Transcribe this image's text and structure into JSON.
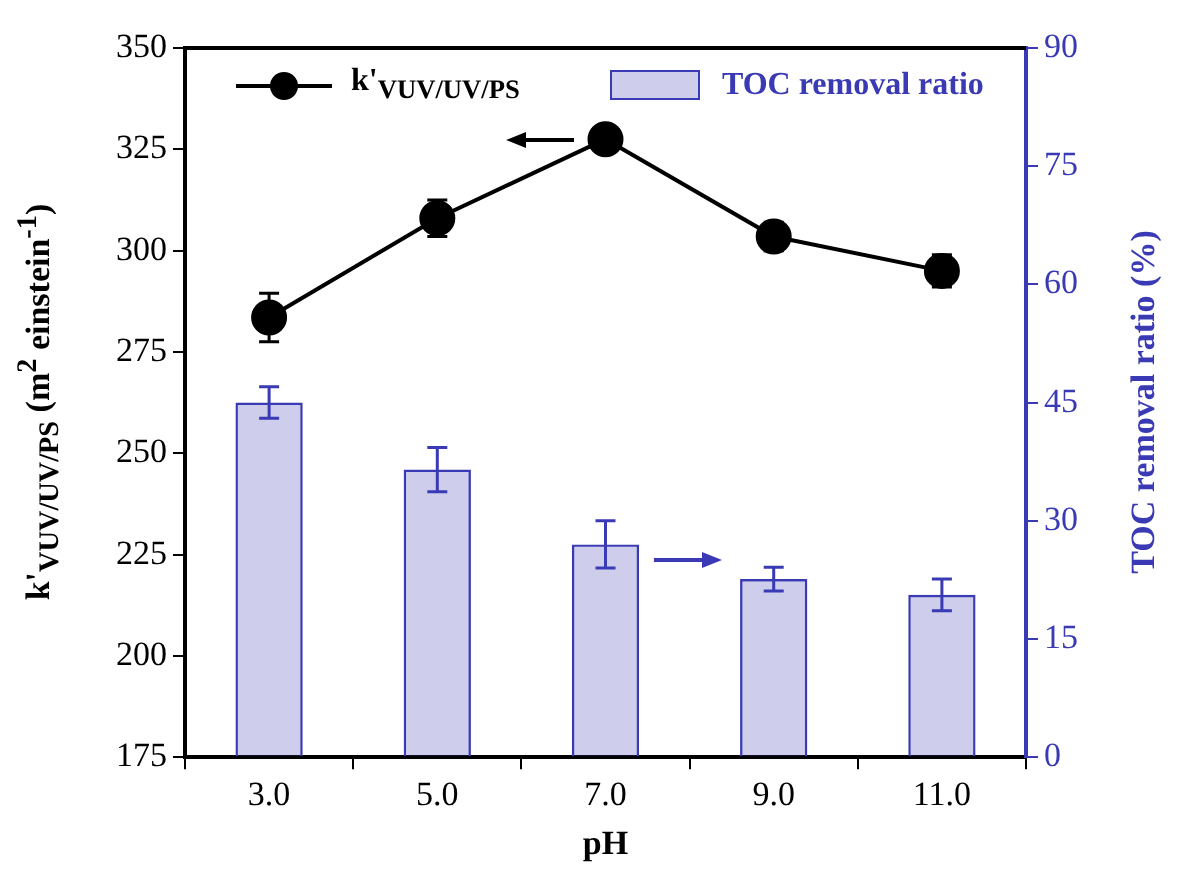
{
  "chart_data": {
    "type": "bar",
    "xlabel": "pH",
    "ylabel": "k'$_{VUV/UV/PS}$ (m$^{2}$ einstein$^{-1}$)",
    "y2label": "TOC removal ratio (%)",
    "categories": [
      "3.0",
      "5.0",
      "7.0",
      "9.0",
      "11.0"
    ],
    "series": [
      {
        "name": "k'$_{VUV/UV/PS}$",
        "type": "line",
        "color": "#000000",
        "values": [
          283.5,
          308,
          327.5,
          303.5,
          295
        ],
        "errors": [
          6,
          4.5,
          1,
          3.5,
          4
        ]
      },
      {
        "name": "TOC removal ratio",
        "axis": "y2",
        "color": "#3a3ab4",
        "values": [
          45,
          36.5,
          27,
          22.6,
          20.6
        ],
        "errors": [
          2,
          2.8,
          3,
          1.5,
          2
        ]
      }
    ],
    "ylim": [
      175,
      350
    ],
    "yticks": [
      175,
      200,
      225,
      250,
      275,
      300,
      325,
      350
    ],
    "y2lim": [
      0,
      90
    ],
    "y2ticks": [
      0,
      15,
      30,
      45,
      60,
      75,
      90
    ],
    "legend": "top",
    "marker": "circle",
    "grid": false
  }
}
